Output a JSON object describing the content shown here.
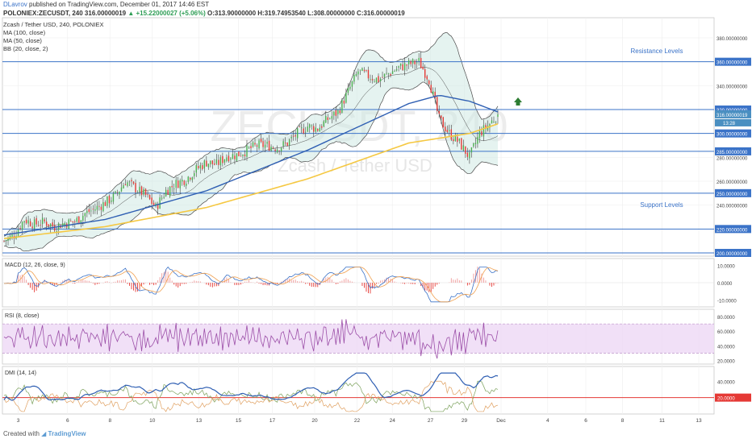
{
  "header": {
    "author": "DLavrov",
    "published": "published on TradingView.com, December 01, 2017 14:46 EST",
    "symbol_line": "POLONIEX:ZECUSDT, 240",
    "price": "316.00000019",
    "change": "▲ +15.22000027 (+5.06%)",
    "ohlc": "O:313.90000000 H:319.74953540 L:308.00000000 C:316.00000019"
  },
  "legend": {
    "title": "Zcash / Tether USD, 240, POLONIEX",
    "ma100": "MA (100, close)",
    "ma50": "MA (50, close)",
    "bb": "BB (20, close, 2)"
  },
  "watermark": {
    "big": "ZECUSDT, 240",
    "small": "Zcash / Tether USD"
  },
  "annotations": {
    "resistance": "Resistance Levels",
    "support": "Support Levels"
  },
  "panels": {
    "macd": "MACD (12, 26, close, 9)",
    "rsi": "RSI (8, close)",
    "dmi": "DMI (14, 14)"
  },
  "price_axis": {
    "ticks": [
      "380.00000000",
      "360.00000000",
      "340.00000000",
      "320.00000000",
      "300.00000000",
      "280.00000000",
      "260.00000000",
      "240.00000000",
      "220.00000000",
      "200.00000000"
    ],
    "highlighted": [
      "360.00000000",
      "320.00000000",
      "300.00000000",
      "285.00000000",
      "250.00000000",
      "220.00000000",
      "200.00000000"
    ],
    "current": "316.00000019",
    "countdown": "13:28"
  },
  "macd_axis": [
    "10.0000",
    "0.0000",
    "-10.0000"
  ],
  "rsi_axis": [
    "80.0000",
    "60.0000",
    "40.0000",
    "20.0000"
  ],
  "dmi_axis": [
    "40.0000",
    "20.0000"
  ],
  "x_axis": [
    "3",
    "6",
    "8",
    "10",
    "13",
    "15",
    "17",
    "20",
    "22",
    "24",
    "27",
    "29",
    "Dec",
    "4",
    "6",
    "8",
    "11",
    "13"
  ],
  "footer": {
    "created": "Created with",
    "brand": "TradingView"
  },
  "colors": {
    "up": "#4caf50",
    "down": "#e53935",
    "ma50": "#2f5fb3",
    "ma100": "#f5c842",
    "bb": "#4a4a4a",
    "bbfill": "#cfeae3",
    "level": "#3b73c8",
    "rsifill": "#eed8f5",
    "rsi": "#9c4fa8",
    "macd": "#3b73c8",
    "signal": "#f0a050",
    "dmiplus": "#7aa05a",
    "dmiminus": "#e0a060",
    "adx": "#2f5fb3",
    "adxref": "#e53935",
    "arrow": "#2e7d32"
  },
  "chart_data": {
    "type": "candlestick",
    "symbol": "ZECUSDT",
    "interval": "240",
    "x_labels": [
      "3",
      "6",
      "8",
      "10",
      "13",
      "15",
      "17",
      "20",
      "22",
      "24",
      "27",
      "29",
      "Dec",
      "4",
      "6",
      "8",
      "11",
      "13"
    ],
    "price_range": [
      195,
      390
    ],
    "levels": [
      360,
      320,
      300,
      285,
      250,
      220,
      200
    ],
    "current_price": 316.00000019,
    "ohlc_last": {
      "open": 313.9,
      "high": 319.7495354,
      "low": 308.0,
      "close": 316.00000019
    },
    "close_path": [
      [
        0,
        210
      ],
      [
        5,
        215
      ],
      [
        10,
        228
      ],
      [
        15,
        224
      ],
      [
        20,
        226
      ],
      [
        25,
        222
      ],
      [
        30,
        225
      ],
      [
        35,
        226
      ],
      [
        40,
        233
      ],
      [
        45,
        237
      ],
      [
        50,
        242
      ],
      [
        55,
        248
      ],
      [
        60,
        260
      ],
      [
        65,
        254
      ],
      [
        70,
        248
      ],
      [
        75,
        238
      ],
      [
        80,
        252
      ],
      [
        85,
        258
      ],
      [
        90,
        262
      ],
      [
        95,
        270
      ],
      [
        100,
        276
      ],
      [
        105,
        274
      ],
      [
        110,
        281
      ],
      [
        115,
        282
      ],
      [
        120,
        286
      ],
      [
        125,
        290
      ],
      [
        130,
        290
      ],
      [
        135,
        288
      ],
      [
        140,
        292
      ],
      [
        145,
        300
      ],
      [
        150,
        306
      ],
      [
        155,
        304
      ],
      [
        160,
        312
      ],
      [
        165,
        318
      ],
      [
        170,
        335
      ],
      [
        175,
        352
      ],
      [
        180,
        348
      ],
      [
        185,
        345
      ],
      [
        190,
        350
      ],
      [
        195,
        355
      ],
      [
        200,
        358
      ],
      [
        205,
        360
      ],
      [
        210,
        345
      ],
      [
        215,
        312
      ],
      [
        220,
        300
      ],
      [
        225,
        292
      ],
      [
        230,
        280
      ],
      [
        235,
        300
      ],
      [
        240,
        308
      ],
      [
        244,
        316
      ]
    ],
    "ma50_path": [
      [
        0,
        215
      ],
      [
        50,
        228
      ],
      [
        100,
        252
      ],
      [
        150,
        286
      ],
      [
        200,
        325
      ],
      [
        215,
        332
      ],
      [
        230,
        327
      ],
      [
        244,
        318
      ]
    ],
    "ma100_path": [
      [
        0,
        212
      ],
      [
        50,
        222
      ],
      [
        100,
        238
      ],
      [
        150,
        262
      ],
      [
        200,
        292
      ],
      [
        230,
        300
      ],
      [
        244,
        308
      ]
    ],
    "macd_range": [
      -12,
      12
    ],
    "rsi_range": [
      15,
      90
    ],
    "rsi_band": [
      30,
      70
    ],
    "dmi_range": [
      0,
      55
    ],
    "adx_reference": 20
  }
}
